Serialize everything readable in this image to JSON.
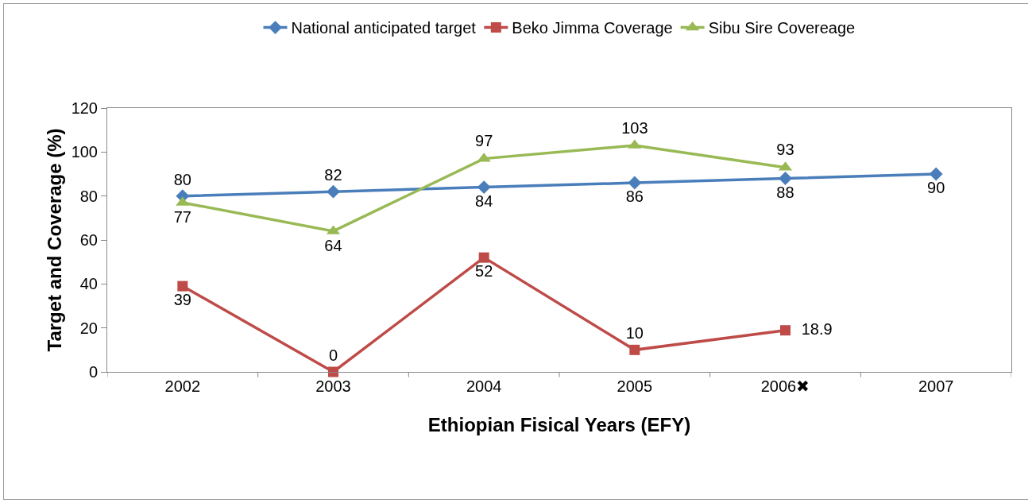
{
  "chart_data": {
    "type": "line",
    "xlabel": "Ethiopian Fisical Years (EFY)",
    "ylabel": "Target and Coverage (%)",
    "categories": [
      "2002",
      "2003",
      "2004",
      "2005",
      "2006✖",
      "2007"
    ],
    "series": [
      {
        "name": "National anticipated target",
        "color": "#4a7ebb",
        "marker": "diamond",
        "values": [
          80,
          82,
          84,
          86,
          88,
          90
        ]
      },
      {
        "name": "Beko Jimma Coverage",
        "color": "#be4b48",
        "marker": "square",
        "values": [
          39,
          0,
          52,
          10,
          18.9,
          null
        ]
      },
      {
        "name": "Sibu Sire Covereage",
        "color": "#98b954",
        "marker": "triangle",
        "values": [
          77,
          64,
          97,
          103,
          93,
          null
        ]
      }
    ],
    "ylim": [
      0,
      120
    ],
    "yticks": [
      0,
      20,
      40,
      60,
      80,
      100,
      120
    ],
    "grid": false,
    "legend": "top",
    "data_labels": true,
    "line_style": "solid"
  }
}
